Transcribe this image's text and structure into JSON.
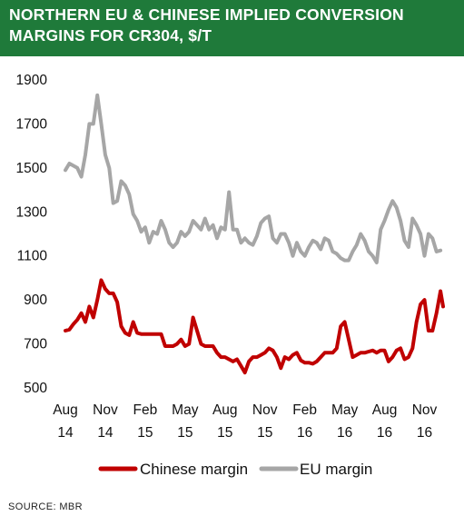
{
  "chart_data": {
    "type": "line",
    "title": "NORTHERN EU & CHINESE IMPLIED CONVERSION MARGINS FOR CR304, $/T",
    "source": "SOURCE: MBR",
    "xlabel": "",
    "ylabel": "",
    "ylim": [
      500,
      1900
    ],
    "yticks": [
      500,
      700,
      900,
      1100,
      1300,
      1500,
      1700,
      1900
    ],
    "x_ticks": [
      {
        "month": 0,
        "line1": "Aug",
        "line2": "14"
      },
      {
        "month": 3,
        "line1": "Nov",
        "line2": "14"
      },
      {
        "month": 6,
        "line1": "Feb",
        "line2": "15"
      },
      {
        "month": 9,
        "line1": "May",
        "line2": "15"
      },
      {
        "month": 12,
        "line1": "Aug",
        "line2": "15"
      },
      {
        "month": 15,
        "line1": "Nov",
        "line2": "15"
      },
      {
        "month": 18,
        "line1": "Feb",
        "line2": "16"
      },
      {
        "month": 21,
        "line1": "May",
        "line2": "16"
      },
      {
        "month": 24,
        "line1": "Aug",
        "line2": "16"
      },
      {
        "month": 27,
        "line1": "Nov",
        "line2": "16"
      }
    ],
    "x_unit": "months since Aug 2014",
    "legend": "bottom-center",
    "grid": false,
    "series": [
      {
        "name": "Chinese margin",
        "color": "#c00000",
        "points": [
          [
            0.0,
            760
          ],
          [
            0.3,
            765
          ],
          [
            0.6,
            790
          ],
          [
            0.9,
            810
          ],
          [
            1.2,
            840
          ],
          [
            1.5,
            800
          ],
          [
            1.8,
            870
          ],
          [
            2.1,
            820
          ],
          [
            2.4,
            900
          ],
          [
            2.7,
            990
          ],
          [
            3.0,
            950
          ],
          [
            3.3,
            930
          ],
          [
            3.6,
            930
          ],
          [
            3.9,
            890
          ],
          [
            4.2,
            780
          ],
          [
            4.5,
            750
          ],
          [
            4.8,
            740
          ],
          [
            5.1,
            800
          ],
          [
            5.4,
            750
          ],
          [
            5.7,
            745
          ],
          [
            6.0,
            745
          ],
          [
            6.3,
            745
          ],
          [
            6.6,
            745
          ],
          [
            6.9,
            745
          ],
          [
            7.2,
            745
          ],
          [
            7.5,
            690
          ],
          [
            7.8,
            690
          ],
          [
            8.1,
            690
          ],
          [
            8.4,
            700
          ],
          [
            8.7,
            720
          ],
          [
            9.0,
            690
          ],
          [
            9.3,
            700
          ],
          [
            9.6,
            820
          ],
          [
            9.9,
            760
          ],
          [
            10.2,
            700
          ],
          [
            10.5,
            690
          ],
          [
            10.8,
            690
          ],
          [
            11.1,
            690
          ],
          [
            11.4,
            660
          ],
          [
            11.7,
            640
          ],
          [
            12.0,
            640
          ],
          [
            12.3,
            630
          ],
          [
            12.6,
            620
          ],
          [
            12.9,
            630
          ],
          [
            13.2,
            600
          ],
          [
            13.5,
            570
          ],
          [
            13.8,
            620
          ],
          [
            14.1,
            640
          ],
          [
            14.4,
            640
          ],
          [
            14.7,
            650
          ],
          [
            15.0,
            660
          ],
          [
            15.3,
            680
          ],
          [
            15.6,
            670
          ],
          [
            15.9,
            640
          ],
          [
            16.2,
            590
          ],
          [
            16.5,
            640
          ],
          [
            16.8,
            630
          ],
          [
            17.1,
            650
          ],
          [
            17.4,
            660
          ],
          [
            17.7,
            625
          ],
          [
            18.0,
            615
          ],
          [
            18.3,
            615
          ],
          [
            18.6,
            610
          ],
          [
            18.9,
            620
          ],
          [
            19.2,
            640
          ],
          [
            19.5,
            660
          ],
          [
            19.8,
            660
          ],
          [
            20.1,
            660
          ],
          [
            20.4,
            680
          ],
          [
            20.7,
            780
          ],
          [
            21.0,
            800
          ],
          [
            21.3,
            720
          ],
          [
            21.6,
            640
          ],
          [
            21.9,
            650
          ],
          [
            22.2,
            660
          ],
          [
            22.5,
            660
          ],
          [
            22.8,
            665
          ],
          [
            23.1,
            670
          ],
          [
            23.4,
            660
          ],
          [
            23.7,
            670
          ],
          [
            24.0,
            670
          ],
          [
            24.3,
            620
          ],
          [
            24.6,
            640
          ],
          [
            24.9,
            670
          ],
          [
            25.2,
            680
          ],
          [
            25.5,
            630
          ],
          [
            25.8,
            640
          ],
          [
            26.1,
            680
          ],
          [
            26.4,
            800
          ],
          [
            26.7,
            880
          ],
          [
            27.0,
            900
          ],
          [
            27.3,
            760
          ],
          [
            27.6,
            760
          ],
          [
            27.9,
            840
          ],
          [
            28.2,
            940
          ],
          [
            28.4,
            870
          ]
        ]
      },
      {
        "name": "EU margin",
        "color": "#a6a6a6",
        "points": [
          [
            0.0,
            1490
          ],
          [
            0.3,
            1520
          ],
          [
            0.6,
            1510
          ],
          [
            0.9,
            1500
          ],
          [
            1.2,
            1460
          ],
          [
            1.5,
            1560
          ],
          [
            1.8,
            1700
          ],
          [
            2.1,
            1700
          ],
          [
            2.4,
            1830
          ],
          [
            2.7,
            1700
          ],
          [
            3.0,
            1560
          ],
          [
            3.3,
            1500
          ],
          [
            3.6,
            1340
          ],
          [
            3.9,
            1350
          ],
          [
            4.2,
            1440
          ],
          [
            4.5,
            1420
          ],
          [
            4.8,
            1380
          ],
          [
            5.1,
            1290
          ],
          [
            5.4,
            1260
          ],
          [
            5.7,
            1210
          ],
          [
            6.0,
            1230
          ],
          [
            6.3,
            1160
          ],
          [
            6.6,
            1210
          ],
          [
            6.9,
            1200
          ],
          [
            7.2,
            1260
          ],
          [
            7.5,
            1220
          ],
          [
            7.8,
            1160
          ],
          [
            8.1,
            1140
          ],
          [
            8.4,
            1160
          ],
          [
            8.7,
            1210
          ],
          [
            9.0,
            1190
          ],
          [
            9.3,
            1210
          ],
          [
            9.6,
            1260
          ],
          [
            9.9,
            1240
          ],
          [
            10.2,
            1220
          ],
          [
            10.5,
            1270
          ],
          [
            10.8,
            1220
          ],
          [
            11.1,
            1240
          ],
          [
            11.4,
            1180
          ],
          [
            11.7,
            1230
          ],
          [
            12.0,
            1220
          ],
          [
            12.3,
            1390
          ],
          [
            12.6,
            1220
          ],
          [
            12.9,
            1220
          ],
          [
            13.2,
            1160
          ],
          [
            13.5,
            1180
          ],
          [
            13.8,
            1160
          ],
          [
            14.1,
            1150
          ],
          [
            14.4,
            1190
          ],
          [
            14.7,
            1250
          ],
          [
            15.0,
            1270
          ],
          [
            15.3,
            1280
          ],
          [
            15.6,
            1180
          ],
          [
            15.9,
            1160
          ],
          [
            16.2,
            1200
          ],
          [
            16.5,
            1200
          ],
          [
            16.8,
            1160
          ],
          [
            17.1,
            1100
          ],
          [
            17.4,
            1160
          ],
          [
            17.7,
            1120
          ],
          [
            18.0,
            1100
          ],
          [
            18.3,
            1140
          ],
          [
            18.6,
            1170
          ],
          [
            18.9,
            1160
          ],
          [
            19.2,
            1130
          ],
          [
            19.5,
            1180
          ],
          [
            19.8,
            1170
          ],
          [
            20.1,
            1120
          ],
          [
            20.4,
            1110
          ],
          [
            20.7,
            1090
          ],
          [
            21.0,
            1080
          ],
          [
            21.3,
            1080
          ],
          [
            21.6,
            1120
          ],
          [
            21.9,
            1150
          ],
          [
            22.2,
            1200
          ],
          [
            22.5,
            1170
          ],
          [
            22.8,
            1120
          ],
          [
            23.1,
            1100
          ],
          [
            23.4,
            1070
          ],
          [
            23.7,
            1220
          ],
          [
            24.0,
            1260
          ],
          [
            24.3,
            1310
          ],
          [
            24.6,
            1350
          ],
          [
            24.9,
            1320
          ],
          [
            25.2,
            1260
          ],
          [
            25.5,
            1170
          ],
          [
            25.8,
            1140
          ],
          [
            26.1,
            1270
          ],
          [
            26.4,
            1240
          ],
          [
            26.7,
            1200
          ],
          [
            27.0,
            1100
          ],
          [
            27.3,
            1200
          ],
          [
            27.6,
            1180
          ],
          [
            27.9,
            1120
          ],
          [
            28.2,
            1125
          ]
        ]
      }
    ]
  }
}
